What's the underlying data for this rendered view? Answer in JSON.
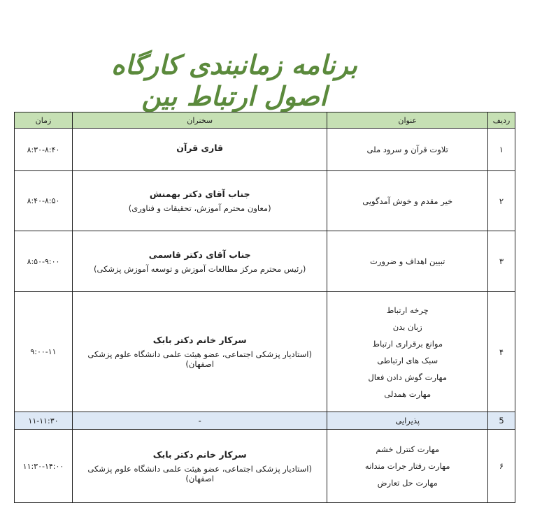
{
  "title": "برنامه زمانبندی کارگاه اصول ارتباط بین",
  "header": {
    "row": "ردیف",
    "topic": "عنوان",
    "speaker": "سخنران",
    "time": "زمان"
  },
  "colors": {
    "header_bg": "#c6e0b4",
    "break_bg": "#dde8f5",
    "title": "#5b8a3c"
  },
  "rows": [
    {
      "num": "۱",
      "topics": [
        "تلاوت قرآن و سرود ملی"
      ],
      "speaker": "قاری قرآن",
      "role": "",
      "time": "۸:۳۰-۸:۴۰"
    },
    {
      "num": "۲",
      "topics": [
        "خیر مقدم و خوش آمدگویی"
      ],
      "speaker": "جناب آقای دکتر بهمنش",
      "role": "(معاون محترم آموزش، تحقیقات و فناوری)",
      "time": "۸:۴۰-۸:۵۰"
    },
    {
      "num": "۳",
      "topics": [
        "تبیین اهداف و ضرورت"
      ],
      "speaker": "جناب آقای دکتر قاسمی",
      "role": "(رئیس محترم مرکز مطالعات آموزش و توسعه آموزش پزشکی)",
      "time": "۸:۵۰-۹:۰۰"
    },
    {
      "num": "۴",
      "topics": [
        "چرخه ارتباط",
        "زبان بدن",
        "موانع برقراری ارتباط",
        "سبک های ارتباطی",
        "مهارت گوش دادن فعال",
        "مهارت همدلی"
      ],
      "speaker": "سرکار خانم دکتر بابک",
      "role": "(استادیار پزشکی اجتماعی، عضو هیئت علمی دانشگاه علوم پزشکی اصفهان)",
      "time": "۹:۰۰-۱۱"
    },
    {
      "num": "5",
      "topics": [
        "پذیرایی"
      ],
      "speaker": "-",
      "role": "",
      "time": "۱۱-۱۱:۳۰"
    },
    {
      "num": "۶",
      "topics": [
        "مهارت کنترل خشم",
        "مهارت رفتار جرات مندانه",
        "مهارت حل تعارض"
      ],
      "speaker": "سرکار خانم دکتر بابک",
      "role": "(استادیار پزشکی اجتماعی، عضو هیئت علمی دانشگاه علوم پزشکی اصفهان)",
      "time": "۱۱:۳۰-۱۴:۰۰"
    }
  ]
}
